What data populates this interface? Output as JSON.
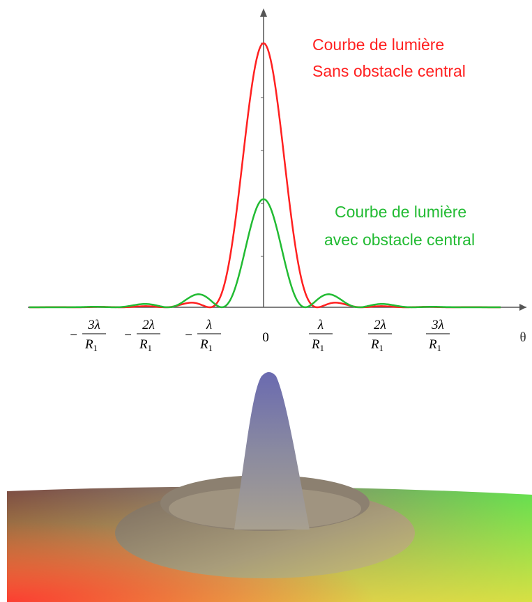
{
  "annotations": {
    "no_obstruction": [
      "Courbe de lumière",
      "Sans obstacle central"
    ],
    "with_obstruction": [
      "Courbe de lumière",
      "avec obstacle central"
    ]
  },
  "axis": {
    "x_label": "θ",
    "origin": "0",
    "ticks": [
      {
        "sign": "−",
        "numerator": "3λ",
        "denominator": "R",
        "index": "1"
      },
      {
        "sign": "−",
        "numerator": "2λ",
        "denominator": "R",
        "index": "1"
      },
      {
        "sign": "−",
        "numerator": "λ",
        "denominator": "R",
        "index": "1"
      },
      {
        "numerator": "λ",
        "denominator": "R",
        "index": "1"
      },
      {
        "numerator": "2λ",
        "denominator": "R",
        "index": "1"
      },
      {
        "numerator": "3λ",
        "denominator": "R",
        "index": "1"
      }
    ]
  }
}
